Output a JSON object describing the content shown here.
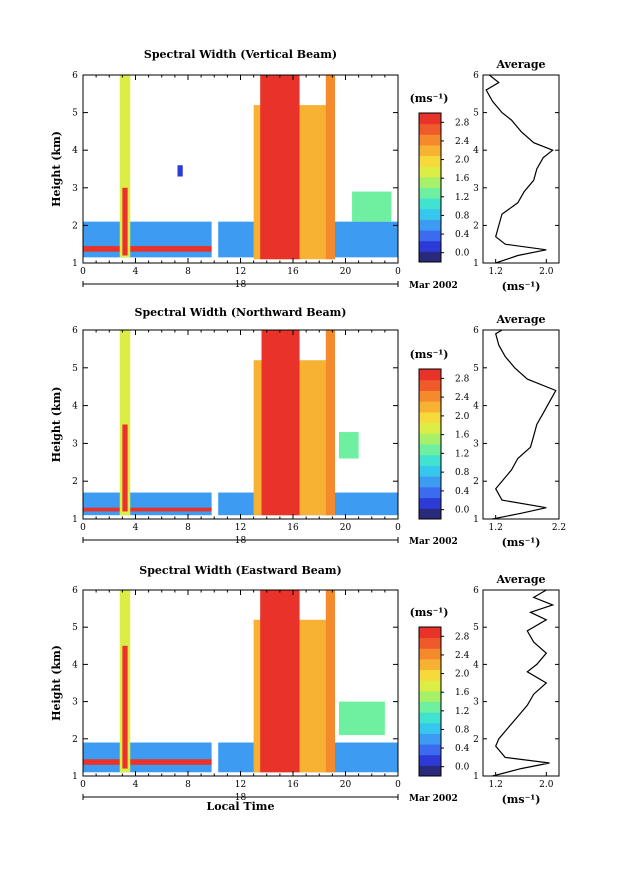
{
  "colorbar": {
    "unit_label": "(ms⁻¹)",
    "ticks": [
      "0.0",
      "0.4",
      "0.8",
      "1.2",
      "1.6",
      "2.0",
      "2.4",
      "2.8"
    ],
    "colors": [
      "#2a2a7a",
      "#2d3bd6",
      "#3b6cf0",
      "#3d9bf2",
      "#36c7ee",
      "#3fe3cf",
      "#6ef0a0",
      "#a6f06a",
      "#dcee45",
      "#f6d93a",
      "#f8b233",
      "#f48a2c",
      "#ee5a2a",
      "#e8322a"
    ]
  },
  "chart_data": [
    {
      "type": "heatmap",
      "title": "Spectral Width (Vertical Beam)",
      "ylabel": "Height (km)",
      "xlabel": "",
      "x_ticks": [
        "0",
        "4",
        "8",
        "12",
        "16",
        "20",
        "0"
      ],
      "y_ticks": [
        "1",
        "2",
        "3",
        "4",
        "5",
        "6"
      ],
      "xlim": [
        0,
        24
      ],
      "ylim": [
        1,
        6
      ],
      "date_day": "18",
      "date_label": "Mar 2002",
      "zlim": [
        0,
        2.8
      ],
      "bands": [
        {
          "x0": 0.0,
          "x1": 9.8,
          "y0": 1.15,
          "y1": 2.1,
          "z": 0.6
        },
        {
          "x0": 10.3,
          "x1": 24.0,
          "y0": 1.15,
          "y1": 2.1,
          "z": 0.6
        },
        {
          "x0": 0.0,
          "x1": 9.8,
          "y0": 1.3,
          "y1": 1.45,
          "z": 2.6
        },
        {
          "x0": 2.8,
          "x1": 3.6,
          "y0": 1.15,
          "y1": 6.0,
          "z": 1.6
        },
        {
          "x0": 3.0,
          "x1": 3.4,
          "y0": 1.2,
          "y1": 3.0,
          "z": 2.6
        },
        {
          "x0": 13.0,
          "x1": 19.0,
          "y0": 1.1,
          "y1": 5.2,
          "z": 2.0
        },
        {
          "x0": 13.5,
          "x1": 16.5,
          "y0": 1.1,
          "y1": 6.0,
          "z": 2.7
        },
        {
          "x0": 18.5,
          "x1": 19.2,
          "y0": 1.1,
          "y1": 6.0,
          "z": 2.2
        },
        {
          "x0": 20.5,
          "x1": 23.5,
          "y0": 2.1,
          "y1": 2.9,
          "z": 1.2
        },
        {
          "x0": 7.2,
          "x1": 7.6,
          "y0": 3.3,
          "y1": 3.6,
          "z": 0.3
        }
      ],
      "profile": {
        "title": "Average",
        "xlabel": "(ms⁻¹)",
        "x_ticks": [
          "1.2",
          "2.0"
        ],
        "xlim": [
          1.0,
          2.2
        ],
        "heights": [
          1.0,
          1.2,
          1.35,
          1.5,
          1.7,
          2.0,
          2.3,
          2.6,
          2.9,
          3.2,
          3.5,
          3.8,
          4.0,
          4.2,
          4.5,
          4.8,
          5.0,
          5.3,
          5.6,
          5.8,
          6.0
        ],
        "values": [
          1.2,
          1.55,
          2.0,
          1.35,
          1.2,
          1.25,
          1.3,
          1.55,
          1.65,
          1.8,
          1.85,
          1.95,
          2.1,
          1.8,
          1.6,
          1.45,
          1.3,
          1.15,
          1.05,
          1.25,
          1.1
        ]
      }
    },
    {
      "type": "heatmap",
      "title": "Spectral Width (Northward Beam)",
      "ylabel": "Height (km)",
      "xlabel": "",
      "x_ticks": [
        "0",
        "4",
        "8",
        "12",
        "16",
        "20",
        "0"
      ],
      "y_ticks": [
        "1",
        "2",
        "3",
        "4",
        "5",
        "6"
      ],
      "xlim": [
        0,
        24
      ],
      "ylim": [
        1,
        6
      ],
      "date_day": "18",
      "date_label": "Mar 2002",
      "zlim": [
        0,
        2.8
      ],
      "bands": [
        {
          "x0": 0.0,
          "x1": 9.8,
          "y0": 1.1,
          "y1": 1.7,
          "z": 0.6
        },
        {
          "x0": 10.3,
          "x1": 24.0,
          "y0": 1.1,
          "y1": 1.7,
          "z": 0.6
        },
        {
          "x0": 0.0,
          "x1": 9.8,
          "y0": 1.2,
          "y1": 1.3,
          "z": 2.6
        },
        {
          "x0": 2.8,
          "x1": 3.6,
          "y0": 1.1,
          "y1": 6.0,
          "z": 1.6
        },
        {
          "x0": 3.0,
          "x1": 3.4,
          "y0": 1.2,
          "y1": 3.5,
          "z": 2.6
        },
        {
          "x0": 13.0,
          "x1": 19.0,
          "y0": 1.1,
          "y1": 5.2,
          "z": 2.0
        },
        {
          "x0": 13.6,
          "x1": 16.5,
          "y0": 1.1,
          "y1": 6.0,
          "z": 2.7
        },
        {
          "x0": 18.5,
          "x1": 19.2,
          "y0": 1.1,
          "y1": 6.0,
          "z": 2.2
        },
        {
          "x0": 19.5,
          "x1": 21.0,
          "y0": 2.6,
          "y1": 3.3,
          "z": 1.2
        }
      ],
      "profile": {
        "title": "Average",
        "xlabel": "(ms⁻¹)",
        "x_ticks": [
          "1.2",
          "2.2"
        ],
        "xlim": [
          1.0,
          2.2
        ],
        "heights": [
          1.0,
          1.15,
          1.3,
          1.5,
          1.8,
          2.0,
          2.3,
          2.6,
          2.9,
          3.2,
          3.5,
          3.8,
          4.1,
          4.4,
          4.7,
          5.0,
          5.3,
          5.6,
          5.9,
          6.0
        ],
        "values": [
          1.15,
          1.6,
          2.0,
          1.3,
          1.2,
          1.3,
          1.45,
          1.55,
          1.75,
          1.8,
          1.85,
          1.95,
          2.05,
          2.15,
          1.7,
          1.5,
          1.35,
          1.25,
          1.2,
          1.3
        ]
      }
    },
    {
      "type": "heatmap",
      "title": "Spectral Width (Eastward Beam)",
      "ylabel": "Height (km)",
      "xlabel": "Local Time",
      "x_ticks": [
        "0",
        "4",
        "8",
        "12",
        "16",
        "20",
        "0"
      ],
      "y_ticks": [
        "1",
        "2",
        "3",
        "4",
        "5",
        "6"
      ],
      "xlim": [
        0,
        24
      ],
      "ylim": [
        1,
        6
      ],
      "date_day": "18",
      "date_label": "Mar 2002",
      "zlim": [
        0,
        2.8
      ],
      "bands": [
        {
          "x0": 0.0,
          "x1": 9.8,
          "y0": 1.1,
          "y1": 1.9,
          "z": 0.6
        },
        {
          "x0": 10.3,
          "x1": 24.0,
          "y0": 1.1,
          "y1": 1.9,
          "z": 0.6
        },
        {
          "x0": 0.0,
          "x1": 9.8,
          "y0": 1.3,
          "y1": 1.45,
          "z": 2.6
        },
        {
          "x0": 2.8,
          "x1": 3.6,
          "y0": 1.1,
          "y1": 6.0,
          "z": 1.6
        },
        {
          "x0": 3.0,
          "x1": 3.4,
          "y0": 1.2,
          "y1": 4.5,
          "z": 2.6
        },
        {
          "x0": 13.0,
          "x1": 19.0,
          "y0": 1.1,
          "y1": 5.2,
          "z": 2.0
        },
        {
          "x0": 13.5,
          "x1": 16.5,
          "y0": 1.1,
          "y1": 6.0,
          "z": 2.7
        },
        {
          "x0": 18.5,
          "x1": 19.2,
          "y0": 1.1,
          "y1": 6.0,
          "z": 2.2
        },
        {
          "x0": 19.5,
          "x1": 23.0,
          "y0": 2.1,
          "y1": 3.0,
          "z": 1.2
        }
      ],
      "profile": {
        "title": "Average",
        "xlabel": "(ms⁻¹)",
        "x_ticks": [
          "1.2",
          "2.0"
        ],
        "xlim": [
          1.0,
          2.2
        ],
        "heights": [
          1.0,
          1.2,
          1.35,
          1.5,
          1.8,
          2.0,
          2.3,
          2.6,
          2.9,
          3.2,
          3.5,
          3.8,
          4.0,
          4.3,
          4.6,
          4.9,
          5.2,
          5.4,
          5.6,
          5.8,
          6.0
        ],
        "values": [
          1.15,
          1.6,
          2.05,
          1.35,
          1.2,
          1.25,
          1.4,
          1.55,
          1.7,
          1.8,
          2.0,
          1.7,
          1.85,
          2.0,
          1.8,
          1.7,
          2.0,
          1.75,
          2.1,
          1.8,
          2.0
        ]
      }
    }
  ]
}
